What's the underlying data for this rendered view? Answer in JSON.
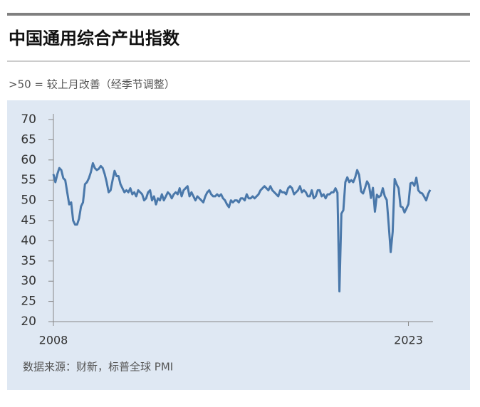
{
  "chart_data": {
    "type": "line",
    "title": "中国通用综合产出指数",
    "subtitle": ">50 = 较上月改善（经季节调整）",
    "source": "数据来源：财新，标普全球 PMI",
    "color": "#4a78aa",
    "ylim": [
      20,
      70
    ],
    "yticks": [
      20,
      25,
      30,
      35,
      40,
      45,
      50,
      55,
      60,
      65,
      70
    ],
    "categories": [
      "2008",
      null,
      null,
      null,
      null,
      null,
      null,
      null,
      null,
      null,
      null,
      null,
      null,
      null,
      null,
      null,
      null,
      null,
      null,
      null,
      null,
      null,
      null,
      null,
      null,
      null,
      null,
      null,
      null,
      null,
      null,
      null,
      null,
      null,
      null,
      null,
      null,
      null,
      null,
      null,
      null,
      null,
      null,
      null,
      null,
      null,
      null,
      null,
      null,
      null,
      null,
      null,
      null,
      null,
      null,
      null,
      null,
      null,
      null,
      null,
      null,
      null,
      null,
      null,
      null,
      null,
      null,
      null,
      null,
      null,
      null,
      null,
      null,
      null,
      null,
      null,
      null,
      null,
      null,
      null,
      null,
      null,
      null,
      null,
      null,
      null,
      null,
      null,
      null,
      null,
      null,
      null,
      null,
      null,
      null,
      null,
      null,
      null,
      null,
      null,
      null,
      null,
      null,
      null,
      null,
      null,
      null,
      null,
      null,
      null,
      null,
      null,
      null,
      null,
      null,
      null,
      null,
      null,
      null,
      null,
      null,
      null,
      null,
      null,
      null,
      null,
      null,
      null,
      null,
      null,
      null,
      null,
      null,
      null,
      null,
      null,
      null,
      null,
      null,
      null,
      null,
      null,
      null,
      null,
      null,
      null,
      null,
      null,
      null,
      null,
      null,
      null,
      null,
      null,
      null,
      null,
      null,
      null,
      null,
      null,
      null,
      null,
      null,
      null,
      null,
      null,
      null,
      null,
      null,
      null,
      null,
      null,
      null,
      null,
      null,
      null,
      null,
      null,
      null,
      null,
      "2023",
      null,
      null,
      null,
      null,
      null,
      null,
      null,
      null,
      null,
      null,
      null
    ],
    "values": [
      56.5,
      54.5,
      56.5,
      58,
      57.5,
      55.5,
      55,
      52,
      49,
      49.5,
      45,
      44,
      44,
      45.5,
      48.5,
      49.5,
      54,
      54.5,
      55.5,
      57,
      59.2,
      58,
      57.5,
      57.8,
      58.5,
      58,
      56.5,
      54.5,
      52,
      52.5,
      55,
      57.3,
      56,
      56,
      54,
      53,
      52,
      52.5,
      52,
      53,
      51.5,
      52,
      51,
      52.5,
      52,
      51.5,
      50,
      50.5,
      52,
      52.5,
      50,
      51,
      49,
      50.5,
      50,
      51.5,
      50,
      51,
      52,
      51.5,
      50.5,
      51.5,
      52,
      51.5,
      53,
      51,
      52.5,
      53,
      53.5,
      51,
      52,
      51,
      50,
      51,
      50.5,
      50,
      49.5,
      51,
      52,
      52.5,
      51.5,
      51,
      51,
      51.5,
      51,
      51.5,
      50.5,
      50,
      49,
      48.3,
      50,
      49.5,
      50,
      50,
      49.5,
      50.5,
      50.5,
      50,
      51.5,
      50.5,
      50.5,
      51,
      50.5,
      51,
      51.5,
      52.5,
      53,
      53.5,
      53,
      52.5,
      53.5,
      52.5,
      52,
      51.5,
      51,
      52.5,
      52,
      52,
      51.5,
      53,
      53.5,
      53,
      51.5,
      52,
      52.5,
      53.5,
      52,
      52.5,
      52,
      51,
      51,
      52.5,
      50.5,
      51,
      52.5,
      52.5,
      51,
      51.5,
      50.5,
      51.5,
      51.5,
      52,
      52,
      53,
      51.9,
      27.5,
      46.7,
      47.6,
      54.5,
      55.7,
      54.5,
      55,
      54.5,
      55.7,
      57.5,
      56.3,
      52.2,
      51.7,
      53.1,
      54.7,
      53.8,
      50.6,
      53.1,
      47.2,
      51.4,
      50.8,
      51.2,
      53,
      51,
      50.1,
      43.9,
      37.2,
      42.2,
      55.3,
      54,
      53,
      48.5,
      48.3,
      47,
      48,
      49.1,
      54.2,
      54.4,
      53.6,
      55.6,
      52.5,
      51.9,
      51.7,
      50.9,
      50,
      51.6,
      52.6
    ]
  }
}
